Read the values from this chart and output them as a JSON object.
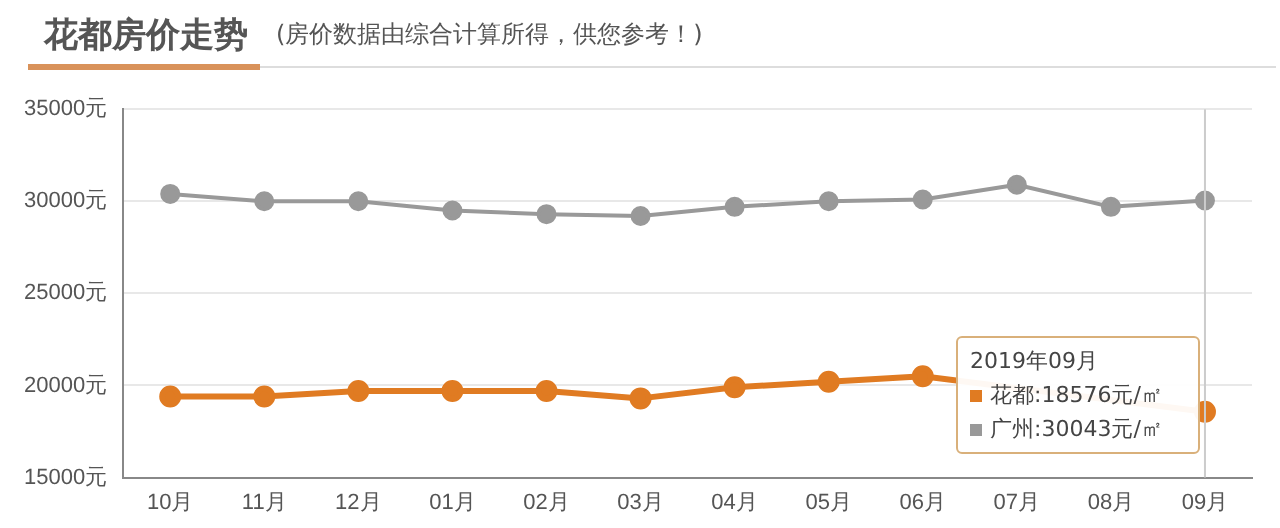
{
  "chart_data": {
    "type": "line",
    "title": "花都房价走势",
    "subtitle": "(房价数据由综合计算所得，供您参考！)",
    "categories": [
      "10月",
      "11月",
      "12月",
      "01月",
      "02月",
      "03月",
      "04月",
      "05月",
      "06月",
      "07月",
      "08月",
      "09月"
    ],
    "series": [
      {
        "name": "广州",
        "color": "#999999",
        "values": [
          30400,
          30000,
          30000,
          29500,
          29300,
          29200,
          29700,
          30000,
          30100,
          30900,
          29700,
          30043
        ]
      },
      {
        "name": "花都",
        "color": "#e07b22",
        "values": [
          19400,
          19400,
          19700,
          19700,
          19700,
          19300,
          19900,
          20200,
          20500,
          null,
          null,
          18576
        ]
      }
    ],
    "ylim": [
      15000,
      35000
    ],
    "yticks": [
      {
        "value": 15000,
        "label": "15000元"
      },
      {
        "value": 20000,
        "label": "20000元"
      },
      {
        "value": 25000,
        "label": "25000元"
      },
      {
        "value": 30000,
        "label": "30000元"
      },
      {
        "value": 35000,
        "label": "35000元"
      }
    ],
    "ref_lines": [
      {
        "axis": "x",
        "value": "09月",
        "color": "#cccccc"
      }
    ],
    "annotations": [
      "2019年09月",
      ":18576元/㎡",
      ":30043元/㎡"
    ],
    "grid": "y",
    "legend": "bottom right",
    "marker": "circle",
    "line_style": "solid"
  }
}
